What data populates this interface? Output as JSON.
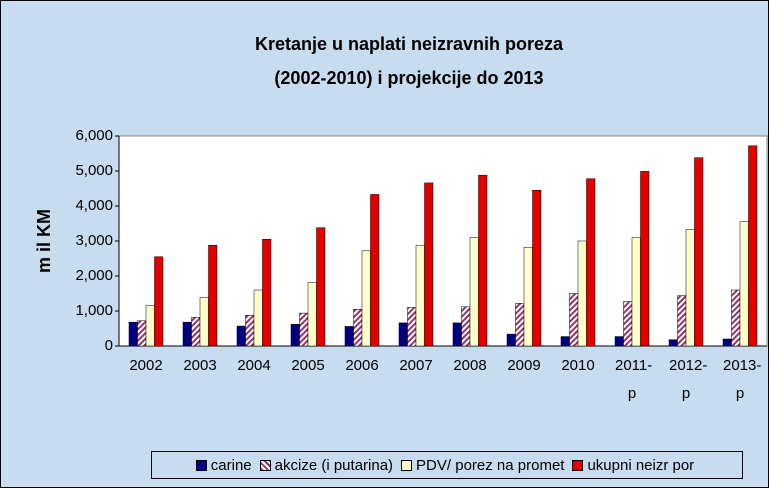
{
  "chart_data": {
    "type": "bar",
    "title": [
      "Kretanje u naplati neizravnih poreza",
      "(2002-2010) i projekcije do 2013"
    ],
    "y_label": "m il KM",
    "categories": [
      "2002",
      "2003",
      "2004",
      "2005",
      "2006",
      "2007",
      "2008",
      "2009",
      "2010",
      "2011-p",
      "2012-p",
      "2013-p"
    ],
    "series": [
      {
        "name": "carine",
        "color": "#000080",
        "values": [
          680,
          680,
          570,
          620,
          560,
          660,
          660,
          340,
          270,
          270,
          180,
          200
        ]
      },
      {
        "name": "akcize (i putarina)",
        "color": "#993366",
        "pattern": "hatch",
        "values": [
          720,
          820,
          880,
          940,
          1050,
          1100,
          1120,
          1220,
          1500,
          1270,
          1440,
          1600
        ]
      },
      {
        "name": "PDV/ porez na promet",
        "color": "#ffffcc",
        "values": [
          1160,
          1390,
          1600,
          1820,
          2720,
          2880,
          3100,
          2820,
          3000,
          3100,
          3330,
          3550
        ]
      },
      {
        "name": "ukupni neizr por",
        "color": "#e00000",
        "values": [
          2550,
          2880,
          3050,
          3380,
          4330,
          4660,
          4880,
          4450,
          4780,
          4990,
          5380,
          5720
        ]
      }
    ],
    "ylim": [
      0,
      6000
    ],
    "yticks": [
      0,
      {
        "value": 1000,
        "label": "1,000"
      },
      {
        "value": 2000,
        "label": "2,000"
      },
      {
        "value": 3000,
        "label": "3,000"
      },
      {
        "value": 4000,
        "label": "4,000"
      },
      {
        "value": 5000,
        "label": "5,000"
      },
      {
        "value": 6000,
        "label": "6,000"
      }
    ],
    "grid": false,
    "legend": "bottom"
  }
}
